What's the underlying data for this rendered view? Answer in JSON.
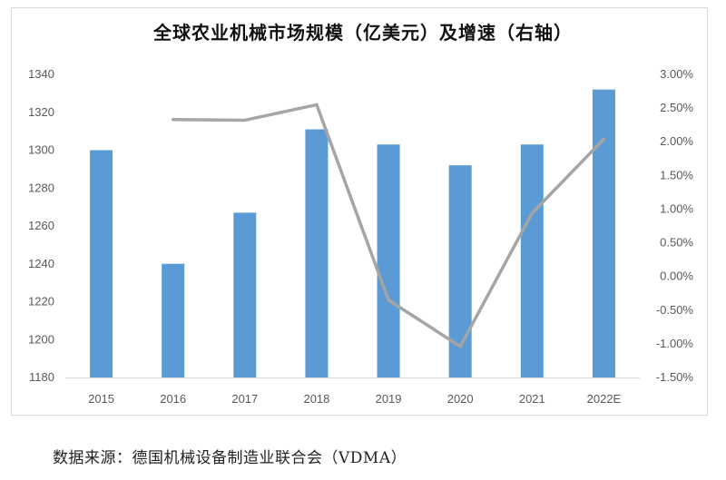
{
  "title": "全球农业机械市场规模（亿美元）及增速（右轴）",
  "source": "数据来源：德国机械设备制造业联合会（VDMA）",
  "chart_data": {
    "type": "bar",
    "categories": [
      "2015",
      "2016",
      "2017",
      "2018",
      "2019",
      "2020",
      "2021",
      "2022E"
    ],
    "series": [
      {
        "type": "bar",
        "axis": "left",
        "color": "#5b9bd5",
        "values": [
          1300,
          1240,
          1267,
          1311,
          1303,
          1292,
          1303,
          1332
        ]
      },
      {
        "type": "line",
        "axis": "right",
        "color": "#a5a5a5",
        "values": [
          null,
          2.33,
          2.32,
          2.55,
          -0.35,
          -1.04,
          0.94,
          2.04
        ]
      }
    ],
    "y_left": {
      "min": 1180,
      "max": 1340,
      "step": 20,
      "ticks": [
        "1180",
        "1200",
        "1220",
        "1240",
        "1260",
        "1280",
        "1300",
        "1320",
        "1340"
      ]
    },
    "y_right": {
      "min": -1.5,
      "max": 3.0,
      "step": 0.5,
      "ticks": [
        "-1.50%",
        "-1.00%",
        "-0.50%",
        "0.00%",
        "0.50%",
        "1.00%",
        "1.50%",
        "2.00%",
        "2.50%",
        "3.00%"
      ]
    },
    "grid": false,
    "legend": "none"
  }
}
